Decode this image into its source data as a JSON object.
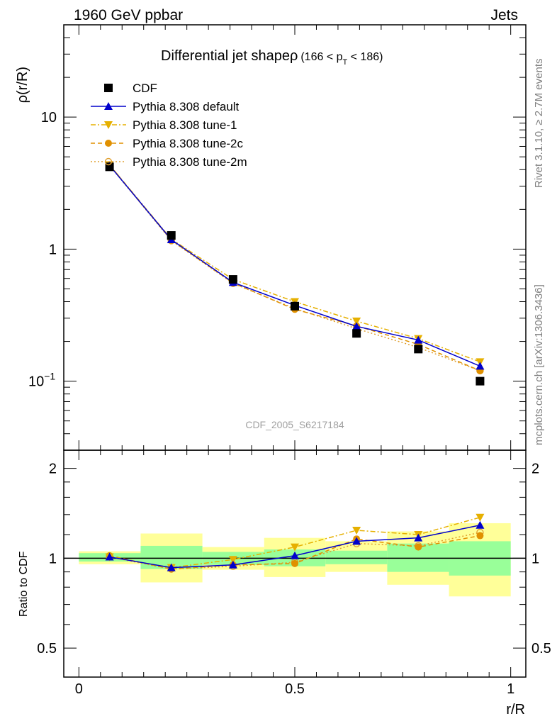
{
  "header": {
    "left": "1960 GeV ppbar",
    "right": "Jets"
  },
  "side": {
    "rivet": "Rivet 3.1.10, ≥ 2.7M events",
    "mcplots": "mcplots.cern.ch [arXiv:1306.3436]"
  },
  "chart_data": {
    "type": "line",
    "title_main": "Differential jet shapeρ",
    "title_cut_pre": "(166 < p",
    "title_cut_sub": "T",
    "title_cut_post": " < 186)",
    "analysis_id": "CDF_2005_S6217184",
    "xlabel": "r/R",
    "ylabel_top": "ρ(r/R)",
    "ylabel_bottom": "Ratio to CDF",
    "xlim": [
      -0.035,
      1.035
    ],
    "ylim_top": [
      0.03,
      50
    ],
    "ylim_bottom": [
      0.4,
      2.3
    ],
    "yscale": "log",
    "x_ticks": [
      {
        "v": 0,
        "label": "0"
      },
      {
        "v": 0.5,
        "label": "0.5"
      },
      {
        "v": 1,
        "label": "1"
      }
    ],
    "y_ticks_top": [
      {
        "v": 0.1,
        "label": "10",
        "sup": "−1"
      },
      {
        "v": 1,
        "label": "1",
        "sup": ""
      },
      {
        "v": 10,
        "label": "10",
        "sup": ""
      }
    ],
    "y_ticks_bottom": [
      {
        "v": 0.5,
        "label": "0.5"
      },
      {
        "v": 1,
        "label": "1"
      },
      {
        "v": 2,
        "label": "2"
      }
    ],
    "x": [
      0.071,
      0.214,
      0.357,
      0.5,
      0.643,
      0.786,
      0.929
    ],
    "bin_edges": [
      0.0,
      0.143,
      0.286,
      0.429,
      0.571,
      0.714,
      0.857,
      1.0
    ],
    "cdf": [
      4.2,
      1.27,
      0.59,
      0.37,
      0.23,
      0.175,
      0.1
    ],
    "band_inner": [
      [
        0.975,
        1.04
      ],
      [
        0.92,
        1.1
      ],
      [
        0.95,
        1.05
      ],
      [
        0.94,
        1.07
      ],
      [
        0.955,
        1.06
      ],
      [
        0.9,
        1.12
      ],
      [
        0.875,
        1.14
      ]
    ],
    "band_outer": [
      [
        0.955,
        1.055
      ],
      [
        0.83,
        1.21
      ],
      [
        0.915,
        1.09
      ],
      [
        0.865,
        1.17
      ],
      [
        0.9,
        1.14
      ],
      [
        0.815,
        1.23
      ],
      [
        0.745,
        1.31
      ]
    ],
    "series": [
      {
        "name": "CDF",
        "values": [
          4.2,
          1.27,
          0.59,
          0.37,
          0.23,
          0.175,
          0.1
        ],
        "ratio": [
          1,
          1,
          1,
          1,
          1,
          1,
          1
        ],
        "color": "#000000",
        "marker": "square",
        "line": "none"
      },
      {
        "name": "Pythia 8.308 default",
        "values": [
          4.3,
          1.18,
          0.56,
          0.375,
          0.26,
          0.205,
          0.13
        ],
        "ratio": [
          1.01,
          0.93,
          0.95,
          1.02,
          1.14,
          1.17,
          1.29
        ],
        "color": "#0000cc",
        "marker": "triangle-up",
        "line": "solid"
      },
      {
        "name": "Pythia 8.308 tune-1",
        "values": [
          4.35,
          1.19,
          0.59,
          0.4,
          0.285,
          0.21,
          0.14
        ],
        "ratio": [
          1.01,
          0.93,
          0.99,
          1.09,
          1.24,
          1.2,
          1.37
        ],
        "color": "#e6b000",
        "marker": "triangle-down",
        "line": "dashdot"
      },
      {
        "name": "Pythia 8.308 tune-2c",
        "values": [
          4.35,
          1.17,
          0.555,
          0.35,
          0.262,
          0.19,
          0.12
        ],
        "ratio": [
          1.02,
          0.92,
          0.95,
          0.96,
          1.16,
          1.09,
          1.19
        ],
        "color": "#e09000",
        "marker": "circle",
        "line": "dashed"
      },
      {
        "name": "Pythia 8.308 tune-2m",
        "values": [
          4.3,
          1.16,
          0.55,
          0.355,
          0.25,
          0.18,
          0.12
        ],
        "ratio": [
          1.01,
          0.92,
          0.94,
          0.97,
          1.12,
          1.1,
          1.22
        ],
        "color": "#e0a030",
        "marker": "circle-open",
        "line": "dotted"
      }
    ]
  }
}
